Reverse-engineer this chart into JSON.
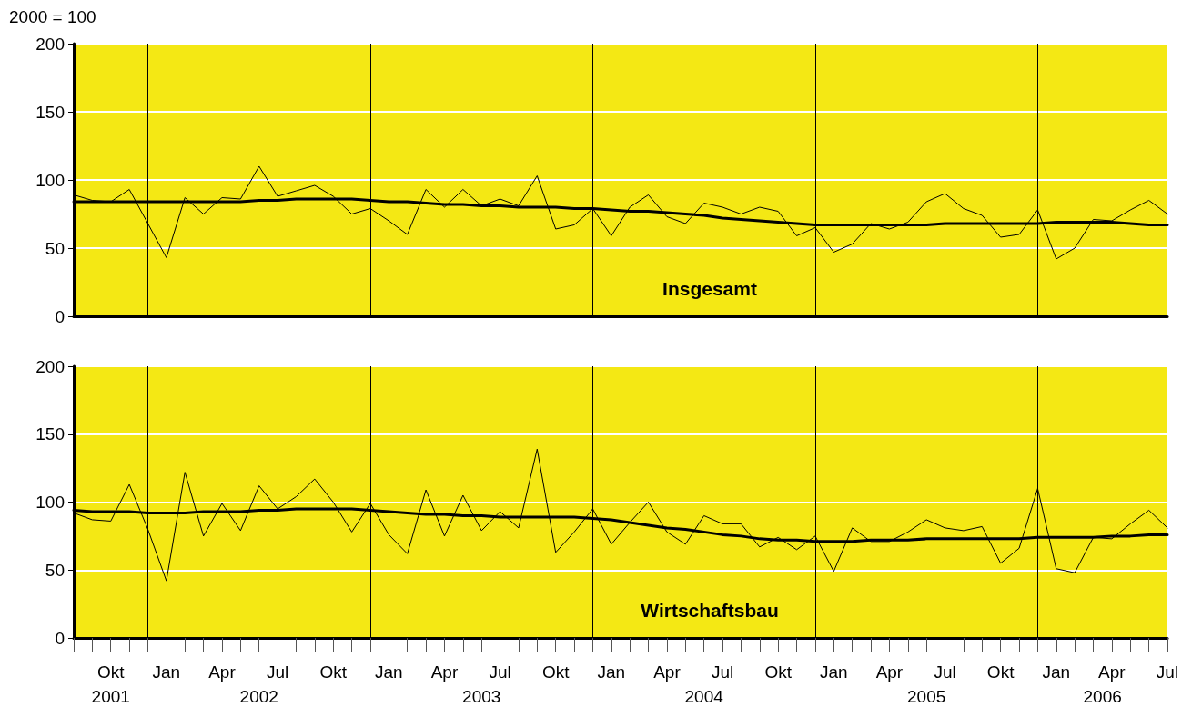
{
  "chart_data": [
    {
      "type": "line",
      "title": "Insgesamt",
      "ylabel": "2000 = 100",
      "tick_labels": "y",
      "grid": "y",
      "marker": "none",
      "line_style": "solid",
      "x": [
        "2001-08",
        "2001-09",
        "2001-10",
        "2001-11",
        "2001-12",
        "2002-01",
        "2002-02",
        "2002-03",
        "2002-04",
        "2002-05",
        "2002-06",
        "2002-07",
        "2002-08",
        "2002-09",
        "2002-10",
        "2002-11",
        "2002-12",
        "2003-01",
        "2003-02",
        "2003-03",
        "2003-04",
        "2003-05",
        "2003-06",
        "2003-07",
        "2003-08",
        "2003-09",
        "2003-10",
        "2003-11",
        "2003-12",
        "2004-01",
        "2004-02",
        "2004-03",
        "2004-04",
        "2004-05",
        "2004-06",
        "2004-07",
        "2004-08",
        "2004-09",
        "2004-10",
        "2004-11",
        "2004-12",
        "2005-01",
        "2005-02",
        "2005-03",
        "2005-04",
        "2005-05",
        "2005-06",
        "2005-07",
        "2005-08",
        "2005-09",
        "2005-10",
        "2005-11",
        "2005-12",
        "2006-01",
        "2006-02",
        "2006-03",
        "2006-04",
        "2006-05",
        "2006-06",
        "2006-07"
      ],
      "xlim": [
        "2001-08",
        "2006-07"
      ],
      "ylim": [
        0,
        200
      ],
      "yticks": [
        0,
        50,
        100,
        150,
        200
      ],
      "ref_lines": [
        {
          "axis": "x",
          "value": "2001-12",
          "color": "#000000"
        },
        {
          "axis": "x",
          "value": "2002-12",
          "color": "#000000"
        },
        {
          "axis": "x",
          "value": "2003-12",
          "color": "#000000"
        },
        {
          "axis": "x",
          "value": "2004-12",
          "color": "#000000"
        },
        {
          "axis": "x",
          "value": "2005-12",
          "color": "#000000"
        }
      ],
      "series": [
        {
          "color": "#000000",
          "values": [
            89,
            85,
            84,
            93,
            68,
            43,
            87,
            75,
            87,
            86,
            110,
            88,
            92,
            96,
            88,
            75,
            79,
            70,
            60,
            93,
            80,
            93,
            81,
            86,
            81,
            103,
            64,
            67,
            79,
            59,
            80,
            89,
            73,
            68,
            83,
            80,
            75,
            80,
            77,
            59,
            65,
            47,
            53,
            68,
            64,
            69,
            84,
            90,
            79,
            74,
            58,
            60,
            78,
            42,
            50,
            71,
            70,
            78,
            85,
            75
          ]
        },
        {
          "color": "#000000",
          "values": [
            84,
            84,
            84,
            84,
            84,
            84,
            84,
            84,
            84,
            84,
            85,
            85,
            86,
            86,
            86,
            86,
            85,
            84,
            84,
            83,
            82,
            82,
            81,
            81,
            80,
            80,
            80,
            79,
            79,
            78,
            77,
            77,
            76,
            75,
            74,
            72,
            71,
            70,
            69,
            68,
            67,
            67,
            67,
            67,
            67,
            67,
            67,
            68,
            68,
            68,
            68,
            68,
            68,
            69,
            69,
            69,
            69,
            68,
            67,
            67
          ]
        }
      ]
    },
    {
      "type": "line",
      "title": "Wirtschaftsbau",
      "grid": "y",
      "marker": "none",
      "line_style": "solid",
      "x": [
        "2001-08",
        "2001-09",
        "2001-10",
        "2001-11",
        "2001-12",
        "2002-01",
        "2002-02",
        "2002-03",
        "2002-04",
        "2002-05",
        "2002-06",
        "2002-07",
        "2002-08",
        "2002-09",
        "2002-10",
        "2002-11",
        "2002-12",
        "2003-01",
        "2003-02",
        "2003-03",
        "2003-04",
        "2003-05",
        "2003-06",
        "2003-07",
        "2003-08",
        "2003-09",
        "2003-10",
        "2003-11",
        "2003-12",
        "2004-01",
        "2004-02",
        "2004-03",
        "2004-04",
        "2004-05",
        "2004-06",
        "2004-07",
        "2004-08",
        "2004-09",
        "2004-10",
        "2004-11",
        "2004-12",
        "2005-01",
        "2005-02",
        "2005-03",
        "2005-04",
        "2005-05",
        "2005-06",
        "2005-07",
        "2005-08",
        "2005-09",
        "2005-10",
        "2005-11",
        "2005-12",
        "2006-01",
        "2006-02",
        "2006-03",
        "2006-04",
        "2006-05",
        "2006-06",
        "2006-07"
      ],
      "xticks": [
        {
          "value": "2001-08",
          "label": null
        },
        {
          "value": "2001-09",
          "label": null
        },
        {
          "value": "2001-10",
          "label": "Okt"
        },
        {
          "value": "2001-11",
          "label": null
        },
        {
          "value": "2001-12",
          "label": null
        },
        {
          "value": "2002-01",
          "label": "Jan"
        },
        {
          "value": "2002-02",
          "label": null
        },
        {
          "value": "2002-03",
          "label": null
        },
        {
          "value": "2002-04",
          "label": "Apr"
        },
        {
          "value": "2002-05",
          "label": null
        },
        {
          "value": "2002-06",
          "label": null
        },
        {
          "value": "2002-07",
          "label": "Jul"
        },
        {
          "value": "2002-08",
          "label": null
        },
        {
          "value": "2002-09",
          "label": null
        },
        {
          "value": "2002-10",
          "label": "Okt"
        },
        {
          "value": "2002-11",
          "label": null
        },
        {
          "value": "2002-12",
          "label": null
        },
        {
          "value": "2003-01",
          "label": "Jan"
        },
        {
          "value": "2003-02",
          "label": null
        },
        {
          "value": "2003-03",
          "label": null
        },
        {
          "value": "2003-04",
          "label": "Apr"
        },
        {
          "value": "2003-05",
          "label": null
        },
        {
          "value": "2003-06",
          "label": null
        },
        {
          "value": "2003-07",
          "label": "Jul"
        },
        {
          "value": "2003-08",
          "label": null
        },
        {
          "value": "2003-09",
          "label": null
        },
        {
          "value": "2003-10",
          "label": "Okt"
        },
        {
          "value": "2003-11",
          "label": null
        },
        {
          "value": "2003-12",
          "label": null
        },
        {
          "value": "2004-01",
          "label": "Jan"
        },
        {
          "value": "2004-02",
          "label": null
        },
        {
          "value": "2004-03",
          "label": null
        },
        {
          "value": "2004-04",
          "label": "Apr"
        },
        {
          "value": "2004-05",
          "label": null
        },
        {
          "value": "2004-06",
          "label": null
        },
        {
          "value": "2004-07",
          "label": "Jul"
        },
        {
          "value": "2004-08",
          "label": null
        },
        {
          "value": "2004-09",
          "label": null
        },
        {
          "value": "2004-10",
          "label": "Okt"
        },
        {
          "value": "2004-11",
          "label": null
        },
        {
          "value": "2004-12",
          "label": null
        },
        {
          "value": "2005-01",
          "label": "Jan"
        },
        {
          "value": "2005-02",
          "label": null
        },
        {
          "value": "2005-03",
          "label": null
        },
        {
          "value": "2005-04",
          "label": "Apr"
        },
        {
          "value": "2005-05",
          "label": null
        },
        {
          "value": "2005-06",
          "label": null
        },
        {
          "value": "2005-07",
          "label": "Jul"
        },
        {
          "value": "2005-08",
          "label": null
        },
        {
          "value": "2005-09",
          "label": null
        },
        {
          "value": "2005-10",
          "label": "Okt"
        },
        {
          "value": "2005-11",
          "label": null
        },
        {
          "value": "2005-12",
          "label": null
        },
        {
          "value": "2006-01",
          "label": "Jan"
        },
        {
          "value": "2006-02",
          "label": null
        },
        {
          "value": "2006-03",
          "label": null
        },
        {
          "value": "2006-04",
          "label": "Apr"
        },
        {
          "value": "2006-05",
          "label": null
        },
        {
          "value": "2006-06",
          "label": null
        },
        {
          "value": "2006-07",
          "label": "Jul"
        }
      ],
      "ylim": [
        0,
        200
      ],
      "yticks": [
        0,
        50,
        100,
        150,
        200
      ],
      "ref_lines": [
        {
          "axis": "x",
          "value": "2001-12",
          "color": "#000000"
        },
        {
          "axis": "x",
          "value": "2002-12",
          "color": "#000000"
        },
        {
          "axis": "x",
          "value": "2003-12",
          "color": "#000000"
        },
        {
          "axis": "x",
          "value": "2004-12",
          "color": "#000000"
        },
        {
          "axis": "x",
          "value": "2005-12",
          "color": "#000000"
        }
      ],
      "xlim": [
        "2001-08",
        "2006-07"
      ],
      "annotations": [
        "2001",
        "2002",
        "2003",
        "2004",
        "2005",
        "2006"
      ],
      "series": [
        {
          "color": "#000000",
          "values": [
            92,
            87,
            86,
            113,
            80,
            42,
            122,
            75,
            99,
            79,
            112,
            95,
            104,
            117,
            100,
            78,
            99,
            76,
            62,
            109,
            75,
            105,
            79,
            93,
            81,
            139,
            63,
            78,
            95,
            69,
            85,
            100,
            78,
            69,
            90,
            84,
            84,
            67,
            74,
            65,
            75,
            49,
            81,
            71,
            71,
            78,
            87,
            81,
            79,
            82,
            55,
            66,
            110,
            51,
            48,
            74,
            73,
            84,
            94,
            81
          ]
        },
        {
          "color": "#000000",
          "values": [
            94,
            93,
            93,
            93,
            92,
            92,
            92,
            93,
            93,
            93,
            94,
            94,
            95,
            95,
            95,
            95,
            94,
            93,
            92,
            91,
            91,
            90,
            90,
            89,
            89,
            89,
            89,
            89,
            88,
            87,
            85,
            83,
            81,
            80,
            78,
            76,
            75,
            73,
            72,
            72,
            71,
            71,
            71,
            72,
            72,
            72,
            73,
            73,
            73,
            73,
            73,
            73,
            74,
            74,
            74,
            74,
            75,
            75,
            76,
            76
          ]
        }
      ]
    }
  ]
}
